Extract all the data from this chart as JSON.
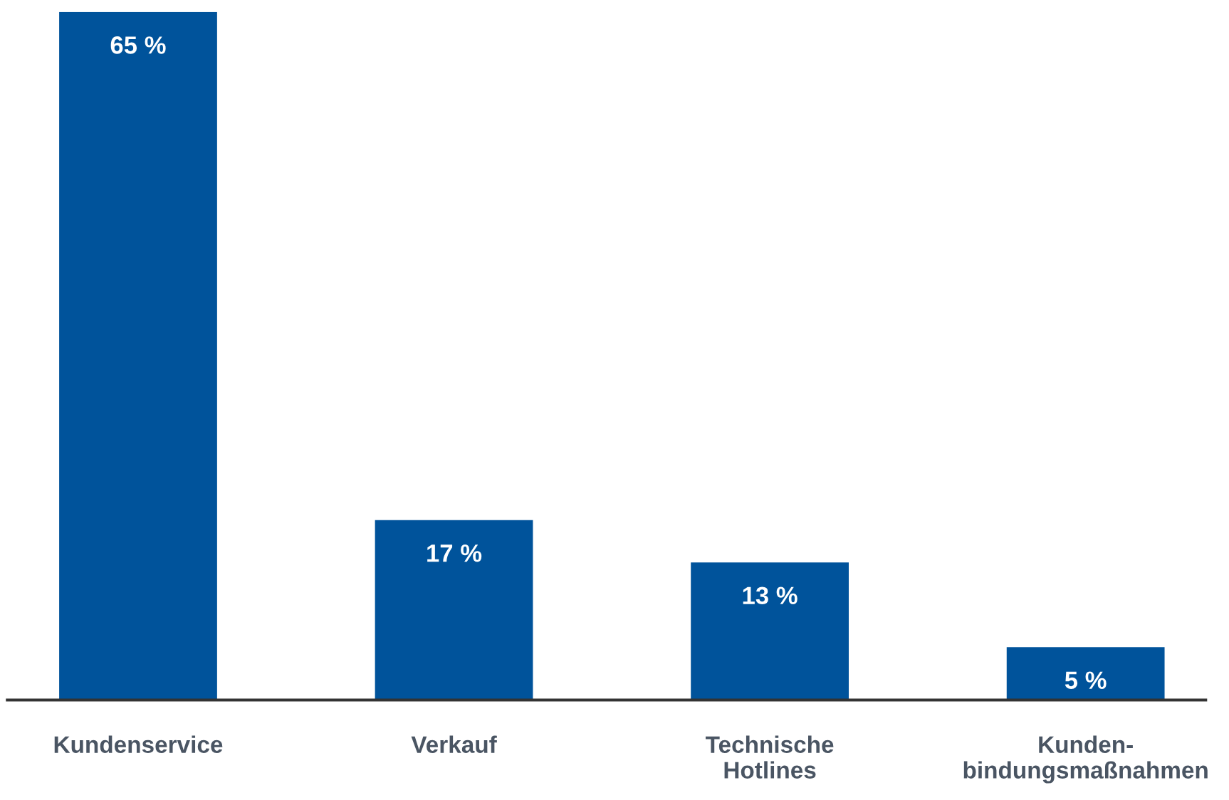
{
  "chart_data": {
    "type": "bar",
    "categories": [
      "Kundenservice",
      "Verkauf",
      "Technische\nHotlines",
      "Kunden-\nbindungsmaßnahmen"
    ],
    "values": [
      65,
      17,
      13,
      5
    ],
    "value_labels": [
      "65 %",
      "17 %",
      "13 %",
      "5 %"
    ],
    "color": "#00539b",
    "grid": false,
    "legend": false
  }
}
